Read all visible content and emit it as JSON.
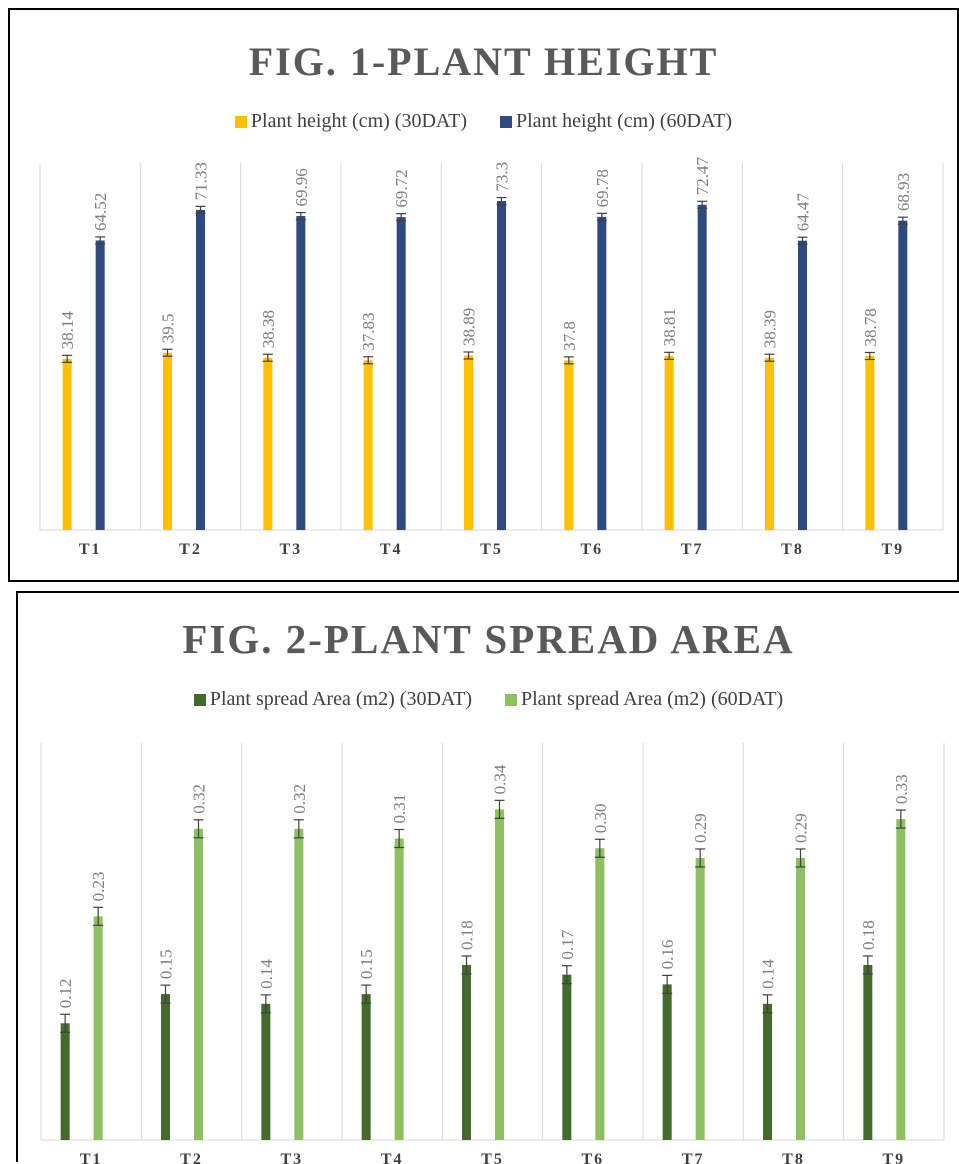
{
  "chart_data": [
    {
      "type": "bar",
      "title": "FIG. 1-PLANT HEIGHT",
      "categories": [
        "T1",
        "T2",
        "T3",
        "T4",
        "T5",
        "T6",
        "T7",
        "T8",
        "T9"
      ],
      "series": [
        {
          "name": "Plant height (cm) (30DAT)",
          "color": "#FFC000",
          "values": [
            38.14,
            39.5,
            38.38,
            37.83,
            38.89,
            37.8,
            38.81,
            38.39,
            38.78
          ],
          "labels": [
            "38.14",
            "39.5",
            "38.38",
            "37.83",
            "38.89",
            "37.8",
            "38.81",
            "38.39",
            "38.78"
          ]
        },
        {
          "name": "Plant height (cm) (60DAT)",
          "color": "#2F4A7F",
          "values": [
            64.52,
            71.33,
            69.96,
            69.72,
            73.3,
            69.78,
            72.47,
            64.47,
            68.93
          ],
          "labels": [
            "64.52",
            "71.33",
            "69.96",
            "69.72",
            "73.3",
            "69.78",
            "72.47",
            "64.47",
            "68.93"
          ]
        }
      ],
      "ylim": [
        0,
        80
      ],
      "grid": "vertical separators",
      "legend": "top-center",
      "error_bars": true
    },
    {
      "type": "bar",
      "title": "FIG. 2-PLANT SPREAD AREA",
      "categories": [
        "T1",
        "T2",
        "T3",
        "T4",
        "T5",
        "T6",
        "T7",
        "T8",
        "T9"
      ],
      "series": [
        {
          "name": "Plant spread Area (m2) (30DAT)",
          "color": "#426B2C",
          "values": [
            0.12,
            0.15,
            0.14,
            0.15,
            0.18,
            0.17,
            0.16,
            0.14,
            0.18
          ],
          "labels": [
            "0.12",
            "0.15",
            "0.14",
            "0.15",
            "0.18",
            "0.17",
            "0.16",
            "0.14",
            "0.18"
          ]
        },
        {
          "name": "Plant spread Area (m2) (60DAT)",
          "color": "#8DC060",
          "values": [
            0.23,
            0.32,
            0.32,
            0.31,
            0.34,
            0.3,
            0.29,
            0.29,
            0.33
          ],
          "labels": [
            "0.23",
            "0.32",
            "0.32",
            "0.31",
            "0.34",
            "0.30",
            "0.29",
            "0.29",
            "0.33"
          ]
        }
      ],
      "ylim": [
        0,
        0.4
      ],
      "grid": "vertical separators",
      "legend": "top-center",
      "error_bars": true
    }
  ]
}
